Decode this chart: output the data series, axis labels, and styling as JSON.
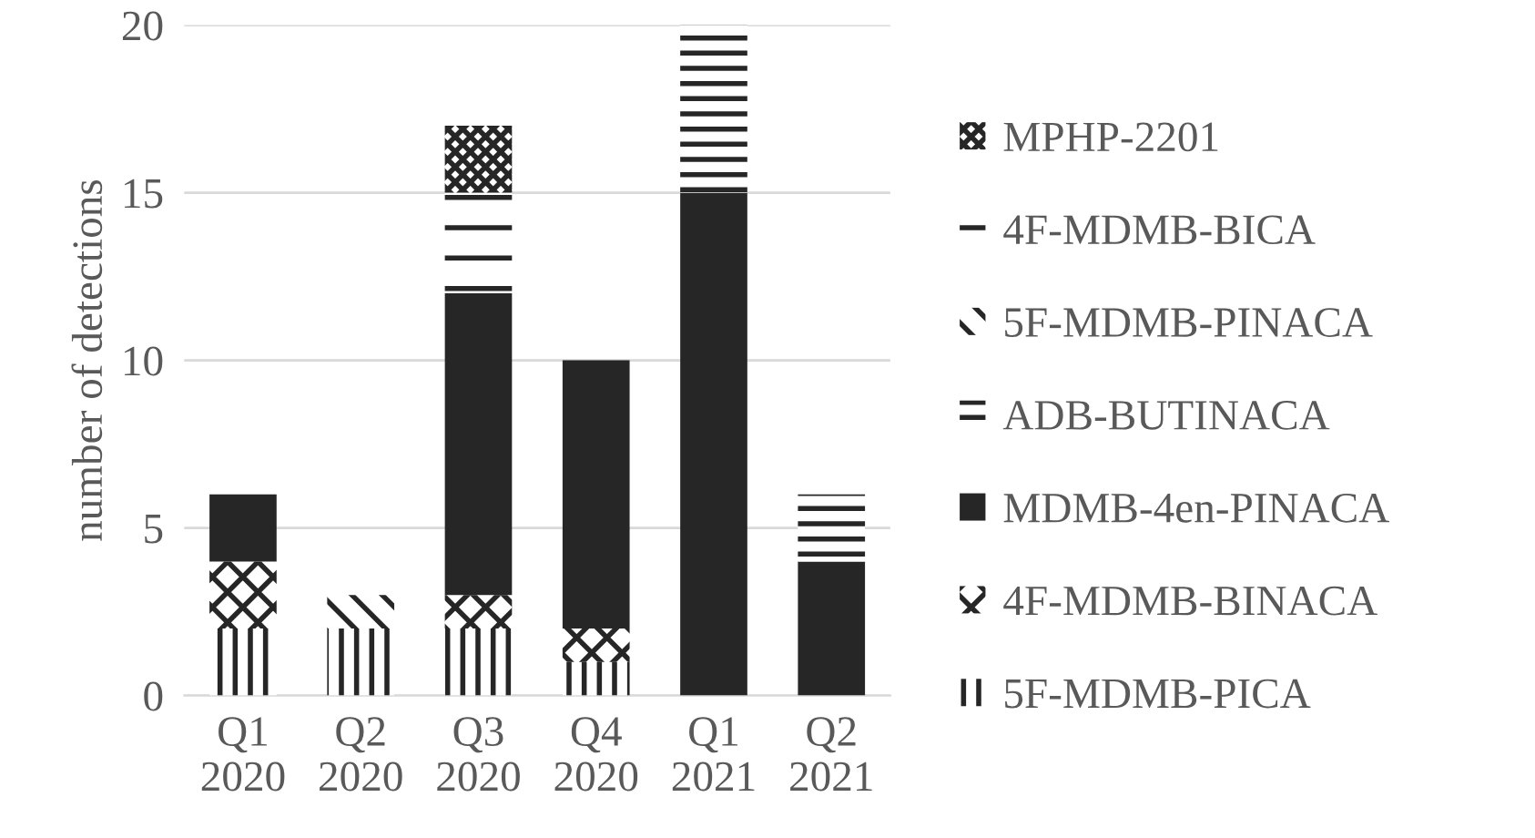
{
  "chart_data": {
    "type": "bar",
    "stacked": true,
    "ylabel": "number of detections",
    "categories": [
      "Q1\n2020",
      "Q2\n2020",
      "Q3\n2020",
      "Q4\n2020",
      "Q1\n2021",
      "Q2\n2021"
    ],
    "series": [
      {
        "name": "5F-MDMB-PICA",
        "color": "#262626",
        "values": [
          2,
          2,
          2,
          1,
          0,
          0
        ]
      },
      {
        "name": "4F-MDMB-BINACA",
        "color": "#262626",
        "values": [
          2,
          0,
          1,
          1,
          0,
          0
        ]
      },
      {
        "name": "MDMB-4en-PINACA",
        "color": "#262626",
        "values": [
          2,
          0,
          9,
          8,
          15,
          4
        ]
      },
      {
        "name": "ADB-BUTINACA",
        "color": "#262626",
        "values": [
          0,
          0,
          0,
          0,
          5,
          2
        ]
      },
      {
        "name": "5F-MDMB-PINACA",
        "color": "#262626",
        "values": [
          0,
          1,
          0,
          0,
          0,
          0
        ]
      },
      {
        "name": "4F-MDMB-BICA",
        "color": "#262626",
        "values": [
          0,
          0,
          3,
          0,
          0,
          0
        ]
      },
      {
        "name": "MPHP-2201",
        "color": "#262626",
        "values": [
          0,
          0,
          2,
          0,
          0,
          0
        ]
      }
    ],
    "ylim": [
      0,
      20
    ],
    "yticks": [
      0,
      5,
      10,
      15,
      20
    ],
    "grid": "y",
    "legend": "right"
  }
}
